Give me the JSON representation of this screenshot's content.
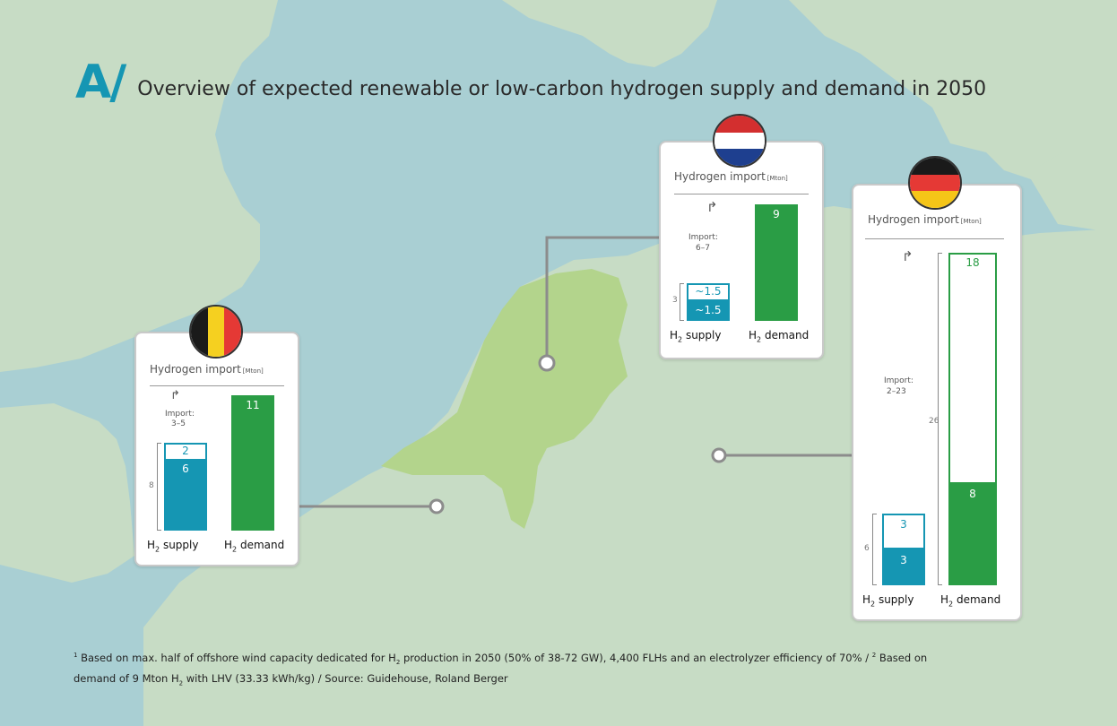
{
  "header": {
    "logo": "A/",
    "title": "Overview of expected renewable or low-carbon hydrogen supply and demand in 2050"
  },
  "card_common": {
    "title": "Hydrogen import",
    "unit": "[Mton]",
    "supply_label": "supply",
    "demand_label": "demand",
    "h_prefix": "H",
    "h_sub": "2"
  },
  "countries": {
    "belgium": {
      "flag_colors": [
        "#1a1a1a",
        "#f5d020",
        "#e53935"
      ],
      "import_label": "Import:",
      "import_range": "3–5",
      "supply_total": "8",
      "supply_values": [
        "2",
        "6"
      ],
      "demand_value": "11"
    },
    "netherlands": {
      "flag_colors": [
        "#d32f2f",
        "#ffffff",
        "#1e3f8f"
      ],
      "import_label": "Import:",
      "import_range": "6–7",
      "supply_total": "3",
      "supply_values": [
        "~1.5",
        "~1.5"
      ],
      "demand_value": "9"
    },
    "germany": {
      "flag_colors": [
        "#1a1a1a",
        "#e53935",
        "#f5c518"
      ],
      "import_label": "Import:",
      "import_range": "2–23",
      "supply_total": "6",
      "supply_values": [
        "3",
        "3"
      ],
      "demand_total": "26",
      "demand_values": [
        "18",
        "8"
      ]
    }
  },
  "colors": {
    "sea": "#a9cfd3",
    "land": "#c7dcc5",
    "netherlands": "#b3d48c",
    "supply": "#1596b3",
    "demand": "#2a9d45",
    "accent": "#1596b3"
  },
  "footnote": {
    "line1_a": "Based on max. half of offshore wind capacity dedicated for H",
    "line1_b": " production in 2050 (50% of 38-72 GW), 4,400 FLHs and an electrolyzer efficiency of 70% / ",
    "line1_c": " Based on",
    "line2_a": "demand of 9 Mton H",
    "line2_b": " with LHV (33.33 kWh/kg) / Source: Guidehouse, Roland Berger",
    "sup1": "1",
    "sup2": "2",
    "sub": "2"
  }
}
